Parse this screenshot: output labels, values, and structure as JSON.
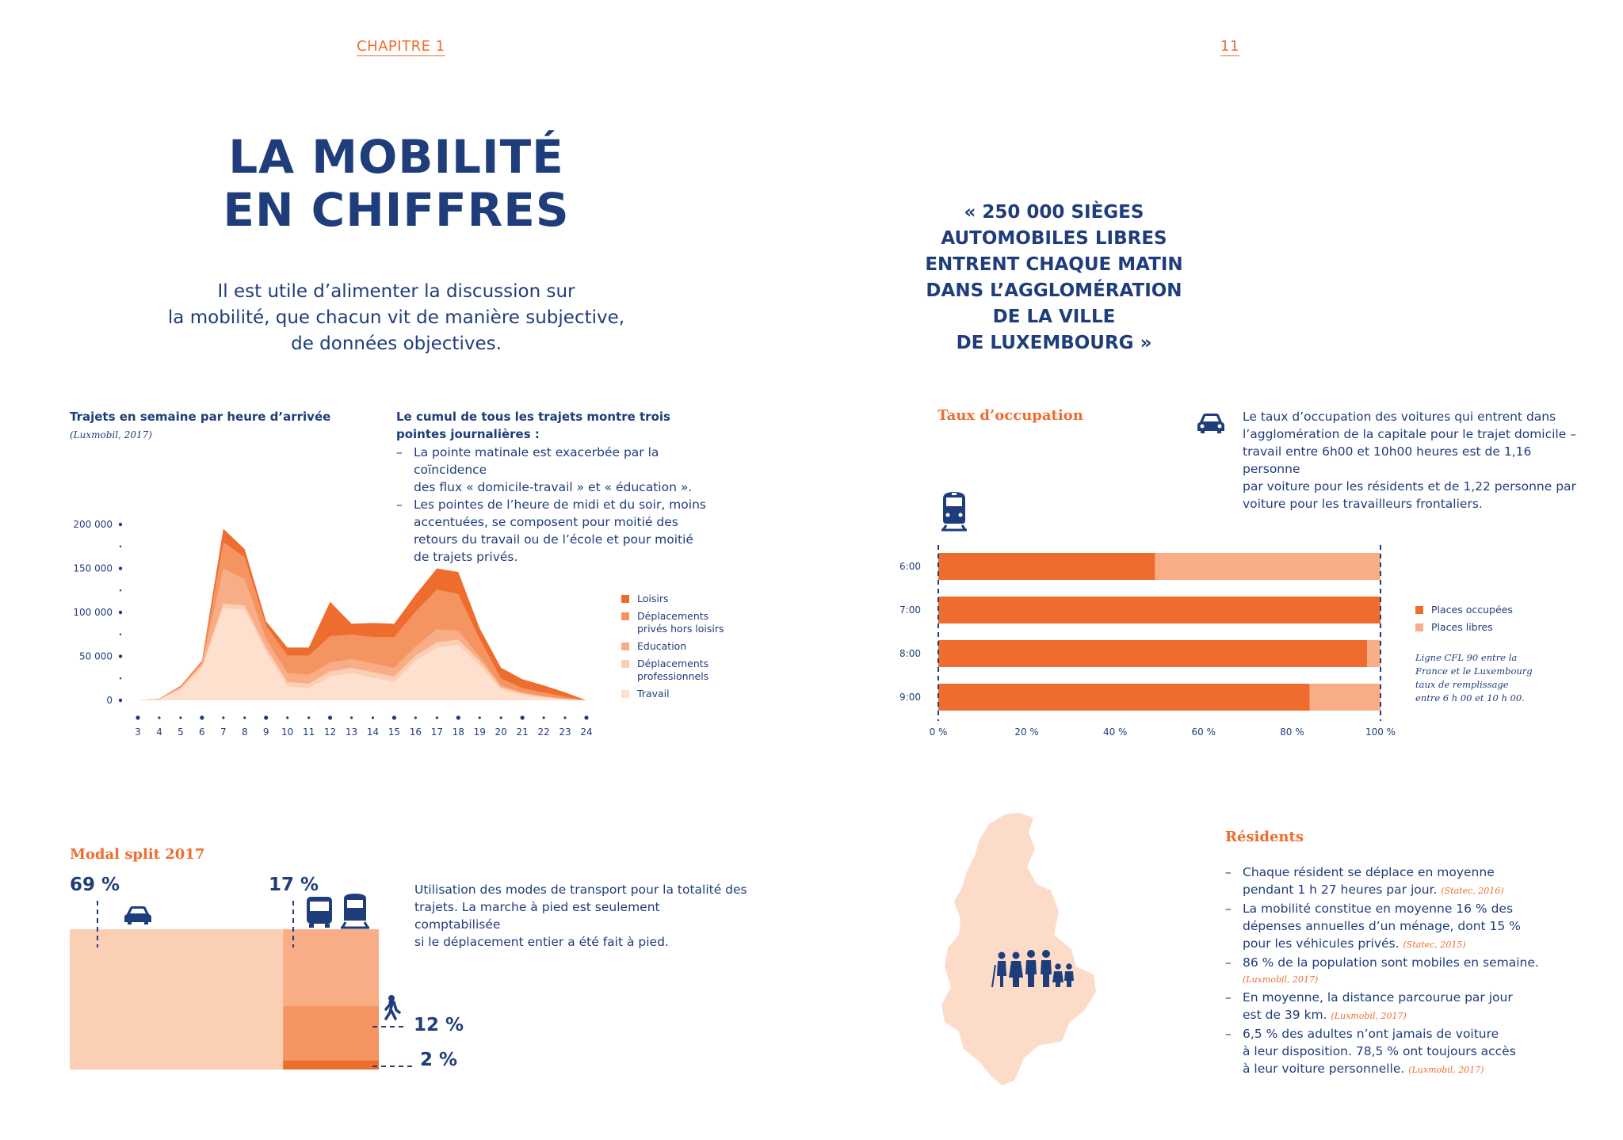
{
  "header": {
    "left": "CHAPITRE 1",
    "right": "11"
  },
  "title": {
    "line1": "LA MOBILITÉ",
    "line2": "EN CHIFFRES"
  },
  "intro": {
    "line1": "Il est utile d’alimenter la discussion sur",
    "line2": "la mobilité, que chacun vit de manière subjective,",
    "line3": "de données objectives."
  },
  "quote": {
    "line1": "« 250 000 SIÈGES",
    "line2": "AUTOMOBILES LIBRES",
    "line3": "ENTRENT CHAQUE MATIN",
    "line4": "DANS L’AGGLOMÉRATION",
    "line5": "DE LA VILLE",
    "line6": "DE LUXEMBOURG »"
  },
  "trips": {
    "heading": "Trajets en semaine par heure d’arrivée",
    "source": "(Luxmobil, 2017)",
    "cumul_heading1": "Le cumul de tous les trajets montre trois",
    "cumul_heading2": "pointes journalières :",
    "bullet1_l1": "La pointe matinale est exacerbée par la coïncidence",
    "bullet1_l2": "des flux « domicile-travail » et « éducation ».",
    "bullet2_l1": "Les pointes de l’heure de midi et du soir, moins",
    "bullet2_l2": "accentuées, se composent pour moitié des",
    "bullet2_l3": "retours du travail ou de l’école et pour moitié",
    "bullet2_l4": "de trajets privés."
  },
  "occupancy": {
    "title": "Taux d’occupation",
    "text_l1": "Le taux d’occupation des voitures qui entrent dans",
    "text_l2": "l’agglomération de la capitale pour le trajet domicile –",
    "text_l3": "travail entre 6h00 et 10h00 heures est de 1,16 personne",
    "text_l4": "par voiture pour les résidents et de 1,22 personne par",
    "text_l5": "voiture pour les travailleurs frontaliers.",
    "note_l1": "Ligne CFL 90 entre la",
    "note_l2": "France et le Luxembourg",
    "note_l3": "taux de remplissage",
    "note_l4": "entre 6 h 00 et 10 h 00.",
    "car_icon": "car-icon",
    "train_icon": "train-icon"
  },
  "modal": {
    "title": "Modal split 2017",
    "car_pct": "69 %",
    "pt_pct": "17 %",
    "walk_pct": "12 %",
    "bike_pct": "2 %",
    "text_l1": "Utilisation des modes de transport pour la totalité des",
    "text_l2": "trajets. La marche à pied est seulement comptabilisée",
    "text_l3": "si le déplacement entier a été fait à pied.",
    "shares": {
      "car": 69,
      "public_transport": 17,
      "walk": 12,
      "bike": 2
    },
    "colors": {
      "car": "#fbcfb4",
      "public_transport": "#f8ad86",
      "walk": "#f49461",
      "bike": "#ef6c2f"
    }
  },
  "residents": {
    "title": "Résidents",
    "b1_l1": "Chaque résident se déplace en moyenne",
    "b1_l2": "pendant 1 h 27 heures par jour.",
    "b1_cite": "(Statec, 2016)",
    "b2_l1": "La mobilité constitue en moyenne 16 % des",
    "b2_l2": "dépenses annuelles d’un ménage, dont 15 %",
    "b2_l3": "pour les véhicules privés.",
    "b2_cite": "(Statec, 2015)",
    "b3_l1": "86 % de la population sont mobiles en semaine.",
    "b3_cite": "(Luxmobil, 2017)",
    "b4_l1": "En moyenne, la distance parcourue par jour",
    "b4_l2": "est de 39 km.",
    "b4_cite": "(Luxmobil, 2017)",
    "b5_l1": "6,5 % des adultes n’ont jamais de voiture",
    "b5_l2": "à leur disposition. 78,5 % ont toujours accès",
    "b5_l3": "à leur voiture personnelle.",
    "b5_cite": "(Luxmobil, 2017)"
  },
  "chart_data": [
    {
      "type": "area",
      "stacked": true,
      "x": [
        3,
        4,
        5,
        6,
        7,
        8,
        9,
        10,
        11,
        12,
        13,
        14,
        15,
        16,
        17,
        18,
        19,
        20,
        21,
        22,
        23,
        24
      ],
      "series": [
        {
          "name": "Travail",
          "color": "#fde0cd",
          "values": [
            0,
            1000,
            12000,
            36000,
            105000,
            103000,
            55000,
            16000,
            14000,
            27000,
            31000,
            26000,
            21000,
            45000,
            60000,
            63000,
            40000,
            12000,
            6000,
            3000,
            1000,
            0
          ]
        },
        {
          "name": "Déplacements professionnels",
          "color": "#fbcfb4",
          "values": [
            0,
            300,
            2000,
            4000,
            5000,
            5000,
            5000,
            5000,
            5000,
            6000,
            6000,
            6000,
            6000,
            6000,
            6000,
            6000,
            5000,
            3000,
            2000,
            1000,
            500,
            0
          ]
        },
        {
          "name": "Education",
          "color": "#f8ad86",
          "values": [
            0,
            200,
            1000,
            2000,
            40000,
            30000,
            10000,
            10000,
            10000,
            10000,
            10000,
            10000,
            10000,
            10000,
            15000,
            10000,
            5000,
            2000,
            1000,
            1000,
            500,
            0
          ]
        },
        {
          "name": "Déplacements privés hors loisirs",
          "color": "#f49461",
          "values": [
            0,
            200,
            1000,
            2000,
            30000,
            25000,
            15000,
            20000,
            22000,
            30000,
            28000,
            30000,
            35000,
            40000,
            45000,
            42000,
            20000,
            8000,
            5000,
            4000,
            2000,
            0
          ]
        },
        {
          "name": "Loisirs",
          "color": "#ef6c2f",
          "values": [
            0,
            200,
            500,
            1000,
            15000,
            9000,
            5000,
            9000,
            9000,
            39000,
            12000,
            16000,
            15000,
            19000,
            24000,
            25000,
            12000,
            12000,
            10000,
            8000,
            5000,
            0
          ]
        }
      ],
      "ylim": [
        0,
        200000
      ],
      "yticks": [
        "0",
        "50 000",
        "100 000",
        "150 000",
        "200 000"
      ],
      "xticks": [
        "3",
        "4",
        "5",
        "6",
        "7",
        "8",
        "9",
        "10",
        "11",
        "12",
        "13",
        "14",
        "15",
        "16",
        "17",
        "18",
        "19",
        "20",
        "21",
        "22",
        "23",
        "24"
      ]
    },
    {
      "type": "bar",
      "orientation": "horizontal",
      "stacked": true,
      "categories": [
        "6:00",
        "7:00",
        "8:00",
        "9:00"
      ],
      "series": [
        {
          "name": "Places occupées",
          "color": "#ef6c2f",
          "values": [
            49,
            100,
            97,
            84
          ]
        },
        {
          "name": "Places libres",
          "color": "#f8ad86",
          "values": [
            51,
            0,
            3,
            16
          ]
        }
      ],
      "xlim": [
        0,
        100
      ],
      "xticks": [
        "0 %",
        "20 %",
        "40 %",
        "60 %",
        "80 %",
        "100 %"
      ]
    }
  ]
}
